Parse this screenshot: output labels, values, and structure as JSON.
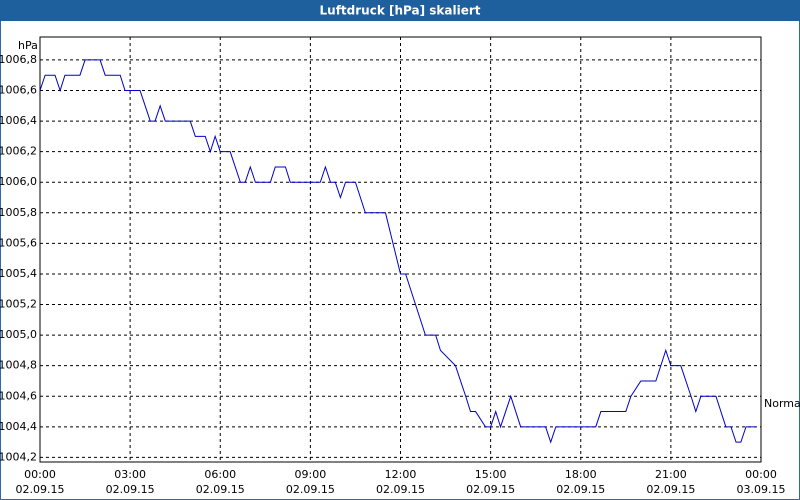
{
  "chart_data": {
    "type": "line",
    "title": "Luftdruck [hPa] skaliert",
    "y_label": "hPa",
    "x": [
      0,
      0.17,
      0.5,
      0.67,
      0.83,
      1.33,
      1.5,
      2,
      2.17,
      2.67,
      2.83,
      3.33,
      3.67,
      3.83,
      4,
      4.17,
      5,
      5.17,
      5.5,
      5.67,
      5.83,
      6,
      6.33,
      6.67,
      6.83,
      7,
      7.17,
      7.67,
      7.83,
      8.17,
      8.33,
      9.33,
      9.5,
      9.67,
      9.83,
      10,
      10.17,
      10.5,
      10.83,
      11.5,
      12,
      12.17,
      12.83,
      13.17,
      13.33,
      13.83,
      14.17,
      14.33,
      14.5,
      14.83,
      15,
      15.17,
      15.33,
      15.67,
      16,
      16.83,
      17,
      17.17,
      18.5,
      18.67,
      19.5,
      19.67,
      20,
      20.5,
      20.83,
      21,
      21.33,
      21.67,
      21.83,
      22,
      22.5,
      22.83,
      23,
      23.17,
      23.33,
      23.5,
      23.83
    ],
    "series": [
      {
        "color": "#0000c8",
        "values": [
          1006.6,
          1006.7,
          1006.7,
          1006.6,
          1006.7,
          1006.7,
          1006.8,
          1006.8,
          1006.7,
          1006.7,
          1006.6,
          1006.6,
          1006.4,
          1006.4,
          1006.5,
          1006.4,
          1006.4,
          1006.3,
          1006.3,
          1006.2,
          1006.3,
          1006.2,
          1006.2,
          1006.0,
          1006.0,
          1006.1,
          1006.0,
          1006.0,
          1006.1,
          1006.1,
          1006.0,
          1006.0,
          1006.1,
          1006.0,
          1006.0,
          1005.9,
          1006.0,
          1006.0,
          1005.8,
          1005.8,
          1005.4,
          1005.4,
          1005.0,
          1005.0,
          1004.9,
          1004.8,
          1004.6,
          1004.5,
          1004.5,
          1004.4,
          1004.4,
          1004.5,
          1004.4,
          1004.6,
          1004.4,
          1004.4,
          1004.3,
          1004.4,
          1004.4,
          1004.5,
          1004.5,
          1004.6,
          1004.7,
          1004.7,
          1004.9,
          1004.8,
          1004.8,
          1004.6,
          1004.5,
          1004.6,
          1004.6,
          1004.4,
          1004.4,
          1004.3,
          1004.3,
          1004.4,
          1004.4
        ]
      }
    ],
    "xlim": [
      0,
      24
    ],
    "xticks": [
      {
        "value": 0,
        "label": "00:00"
      },
      {
        "value": 3,
        "label": "03:00"
      },
      {
        "value": 6,
        "label": "06:00"
      },
      {
        "value": 9,
        "label": "09:00"
      },
      {
        "value": 12,
        "label": "12:00"
      },
      {
        "value": 15,
        "label": "15:00"
      },
      {
        "value": 18,
        "label": "18:00"
      },
      {
        "value": 21,
        "label": "21:00"
      },
      {
        "value": 24,
        "label": "00:00"
      }
    ],
    "xtick_dates": [
      "02.09.15",
      "02.09.15",
      "02.09.15",
      "02.09.15",
      "02.09.15",
      "02.09.15",
      "02.09.15",
      "02.09.15",
      "03.09.15"
    ],
    "ylim": [
      1004.17,
      1006.95
    ],
    "yticks": [
      {
        "value": 1004.2,
        "label": "1004,2"
      },
      {
        "value": 1004.4,
        "label": "1004,4"
      },
      {
        "value": 1004.6,
        "label": "1004,6"
      },
      {
        "value": 1004.8,
        "label": "1004,8"
      },
      {
        "value": 1005.0,
        "label": "1005,0"
      },
      {
        "value": 1005.2,
        "label": "1005,2"
      },
      {
        "value": 1005.4,
        "label": "1005,4"
      },
      {
        "value": 1005.6,
        "label": "1005,6"
      },
      {
        "value": 1005.8,
        "label": "1005,8"
      },
      {
        "value": 1006.0,
        "label": "1006,0"
      },
      {
        "value": 1006.2,
        "label": "1006,2"
      },
      {
        "value": 1006.4,
        "label": "1006,4"
      },
      {
        "value": 1006.6,
        "label": "1006,6"
      },
      {
        "value": 1006.8,
        "label": "1006,8"
      }
    ],
    "grid": true,
    "reference": {
      "label": "Normal",
      "value": 1004.55
    }
  }
}
